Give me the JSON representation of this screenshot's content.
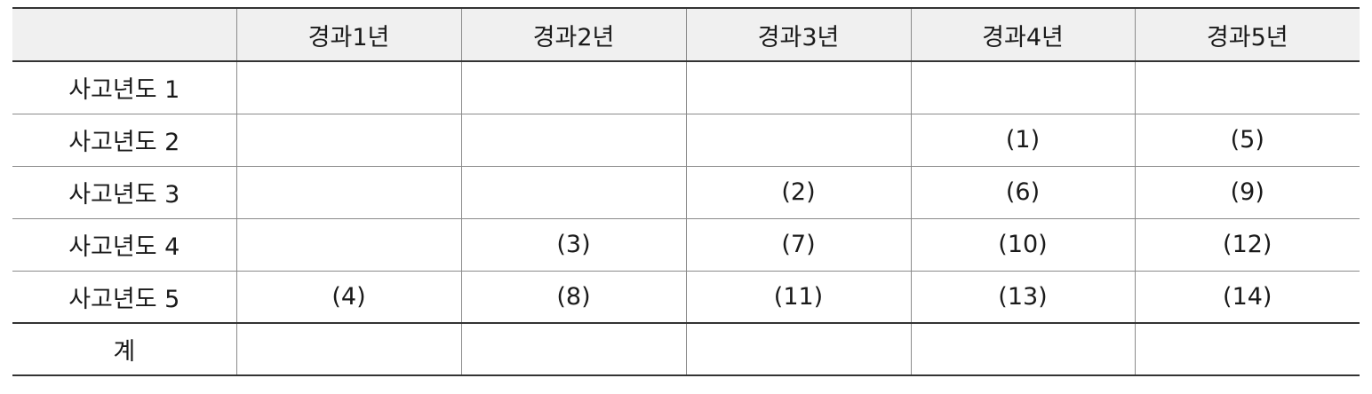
{
  "table": {
    "corner": "",
    "columns": [
      "경과1년",
      "경과2년",
      "경과3년",
      "경과4년",
      "경과5년"
    ],
    "rows": [
      {
        "label": "사고년도 1",
        "cells": [
          "",
          "",
          "",
          "",
          ""
        ]
      },
      {
        "label": "사고년도 2",
        "cells": [
          "",
          "",
          "",
          "(1)",
          "(5)"
        ]
      },
      {
        "label": "사고년도 3",
        "cells": [
          "",
          "",
          "(2)",
          "(6)",
          "(9)"
        ]
      },
      {
        "label": "사고년도 4",
        "cells": [
          "",
          "(3)",
          "(7)",
          "(10)",
          "(12)"
        ]
      },
      {
        "label": "사고년도 5",
        "cells": [
          "(4)",
          "(8)",
          "(11)",
          "(13)",
          "(14)"
        ]
      }
    ],
    "total": {
      "label": "계",
      "cells": [
        "",
        "",
        "",
        "",
        ""
      ]
    }
  }
}
